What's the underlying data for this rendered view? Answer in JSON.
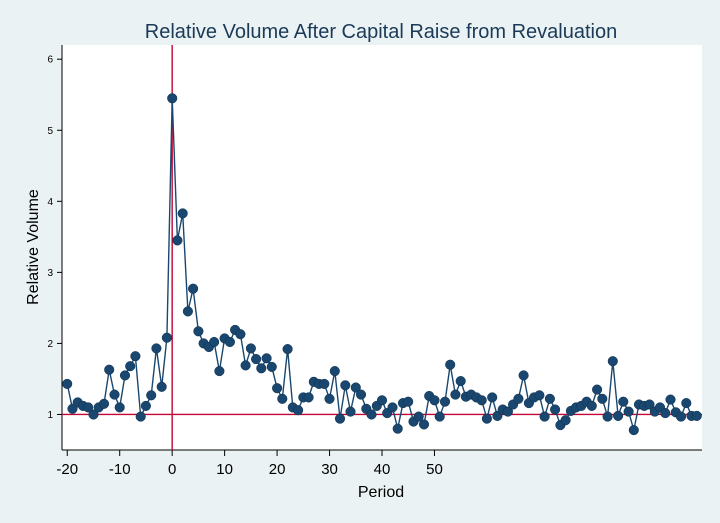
{
  "chart_data": {
    "type": "line",
    "title": "Relative Volume  After Capital Raise from Revaluation",
    "xlabel": "Period",
    "ylabel": "Relative Volume",
    "xlim": [
      -21,
      101
    ],
    "ylim": [
      0.5,
      6.2
    ],
    "xticks": [
      -20,
      -10,
      0,
      10,
      20,
      30,
      40,
      50
    ],
    "xtick_labels": [
      "-20",
      "-10",
      "0",
      "10",
      "20",
      "30",
      "40",
      "50"
    ],
    "yticks": [
      1,
      2,
      3,
      4,
      5,
      6
    ],
    "ytick_labels": [
      "1",
      "2",
      "3",
      "4",
      "5",
      "6"
    ],
    "reference_lines": {
      "x": 0,
      "y": 1
    },
    "colors": {
      "background": "#eaf2f3",
      "plot_background": "#ffffff",
      "series": "#1a476f",
      "reference": "#c10534",
      "title": "#1a3a57"
    },
    "grid": false,
    "legend": "none",
    "series": [
      {
        "x": [
          -20,
          -19,
          -18,
          -17,
          -16,
          -15,
          -14,
          -13,
          -12,
          -11,
          -10,
          -9,
          -8,
          -7,
          -6,
          -5,
          -4,
          -3,
          -2,
          -1,
          0,
          1,
          2,
          3,
          4,
          5,
          6,
          7,
          8,
          9,
          10,
          11,
          12,
          13,
          14,
          15,
          16,
          17,
          18,
          19,
          20,
          21,
          22,
          23,
          24,
          25,
          26,
          27,
          28,
          29,
          30,
          31,
          32,
          33,
          34,
          35,
          36,
          37,
          38,
          39,
          40,
          41,
          42,
          43,
          44,
          45,
          46,
          47,
          48,
          49,
          50,
          51,
          52,
          53,
          54,
          55,
          56,
          57,
          58,
          59,
          60,
          61,
          62,
          63,
          64,
          65,
          66,
          67,
          68,
          69,
          70,
          71,
          72,
          73,
          74,
          75,
          76,
          77,
          78,
          79,
          80,
          81,
          82,
          83,
          84,
          85,
          86,
          87,
          88,
          89,
          90,
          91,
          92,
          93,
          94,
          95,
          96,
          97,
          98,
          99,
          100
        ],
        "values": [
          1.43,
          1.08,
          1.17,
          1.12,
          1.1,
          1.0,
          1.1,
          1.15,
          1.63,
          1.28,
          1.1,
          1.55,
          1.68,
          1.82,
          0.97,
          1.12,
          1.27,
          1.93,
          1.39,
          2.08,
          5.45,
          3.45,
          3.83,
          2.45,
          2.77,
          2.17,
          2.0,
          1.95,
          2.02,
          1.61,
          2.07,
          2.02,
          2.19,
          2.13,
          1.69,
          1.93,
          1.78,
          1.65,
          1.79,
          1.67,
          1.37,
          1.22,
          1.92,
          1.1,
          1.06,
          1.24,
          1.24,
          1.46,
          1.43,
          1.43,
          1.22,
          1.61,
          0.94,
          1.41,
          1.04,
          1.38,
          1.28,
          1.08,
          1.0,
          1.12,
          1.2,
          1.02,
          1.1,
          0.8,
          1.16,
          1.18,
          0.9,
          0.97,
          0.86,
          1.26,
          1.2,
          0.97,
          1.18,
          1.7,
          1.28,
          1.47,
          1.25,
          1.28,
          1.24,
          1.2,
          0.94,
          1.24,
          0.98,
          1.07,
          1.04,
          1.14,
          1.22,
          1.55,
          1.16,
          1.24,
          1.27,
          0.97,
          1.22,
          1.07,
          0.85,
          0.92,
          1.05,
          1.1,
          1.12,
          1.18,
          1.12,
          1.35,
          1.22,
          0.97,
          1.75,
          0.98,
          1.18,
          1.04,
          0.78,
          1.14,
          1.12,
          1.14,
          1.04,
          1.1,
          1.02,
          1.21,
          1.03,
          0.97,
          1.16,
          0.98,
          0.98
        ]
      }
    ]
  }
}
